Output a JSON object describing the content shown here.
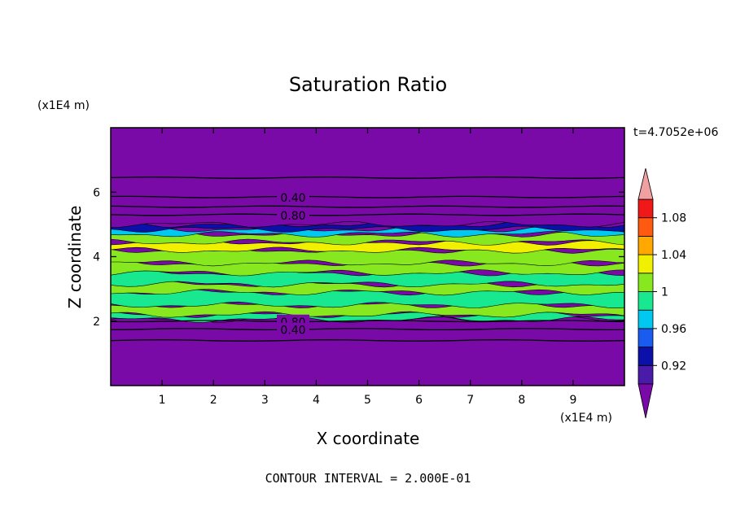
{
  "chart_data": {
    "type": "heatmap",
    "title": "Saturation Ratio",
    "xlabel": "X coordinate",
    "ylabel": "Z coordinate",
    "x_unit_label": "(x1E4 m)",
    "y_unit_label": "(x1E4 m)",
    "time_label": "t=4.7052e+06",
    "footer": "CONTOUR INTERVAL = 2.000E-01",
    "xlim": [
      0,
      10
    ],
    "ylim": [
      0,
      8
    ],
    "x_ticks": [
      1,
      2,
      3,
      4,
      5,
      6,
      7,
      8,
      9
    ],
    "y_ticks": [
      2,
      4,
      6
    ],
    "grid": false,
    "contour_lines": [
      {
        "z": 6.45,
        "label": ""
      },
      {
        "z": 5.85,
        "label": "0.40"
      },
      {
        "z": 5.55,
        "label": ""
      },
      {
        "z": 5.3,
        "label": "0.80"
      },
      {
        "z": 2.0,
        "label": "0.80"
      },
      {
        "z": 1.75,
        "label": "0.40"
      },
      {
        "z": 1.4,
        "label": ""
      }
    ],
    "bands": [
      {
        "z0": 0.0,
        "z1": 2.05,
        "value": 0.6
      },
      {
        "z0": 2.05,
        "z1": 2.2,
        "value": 0.99
      },
      {
        "z0": 2.2,
        "z1": 2.5,
        "value": 1.01
      },
      {
        "z0": 2.5,
        "z1": 2.9,
        "value": 0.99
      },
      {
        "z0": 2.9,
        "z1": 3.15,
        "value": 1.01
      },
      {
        "z0": 3.15,
        "z1": 3.5,
        "value": 0.99
      },
      {
        "z0": 3.5,
        "z1": 3.8,
        "value": 1.01
      },
      {
        "z0": 3.8,
        "z1": 4.2,
        "value": 1.0
      },
      {
        "z0": 4.2,
        "z1": 4.45,
        "value": 1.02
      },
      {
        "z0": 4.45,
        "z1": 4.7,
        "value": 1.01
      },
      {
        "z0": 4.7,
        "z1": 4.85,
        "value": 0.96
      },
      {
        "z0": 4.85,
        "z1": 5.0,
        "value": 0.92
      },
      {
        "z0": 5.0,
        "z1": 8.0,
        "value": 0.6
      }
    ],
    "colorbar": {
      "labels": [
        "0.92",
        "0.96",
        "1",
        "1.04",
        "1.08"
      ],
      "levels": [
        0.92,
        0.94,
        0.96,
        0.98,
        1.0,
        1.02,
        1.04,
        1.06,
        1.08
      ],
      "colors": [
        "#4a1aa8",
        "#0a10a8",
        "#1a5cf0",
        "#00c8f0",
        "#18e890",
        "#88e820",
        "#f0f000",
        "#ffa800",
        "#ff5a10",
        "#f01818",
        "#f0a0a0"
      ],
      "under_color": "#7a0aa8",
      "over_color": "#f0a0a0"
    },
    "colors": {
      "background_field": "#7a0aa8",
      "deep_blue": "#2a10b0",
      "contour_line": "#000000"
    }
  }
}
